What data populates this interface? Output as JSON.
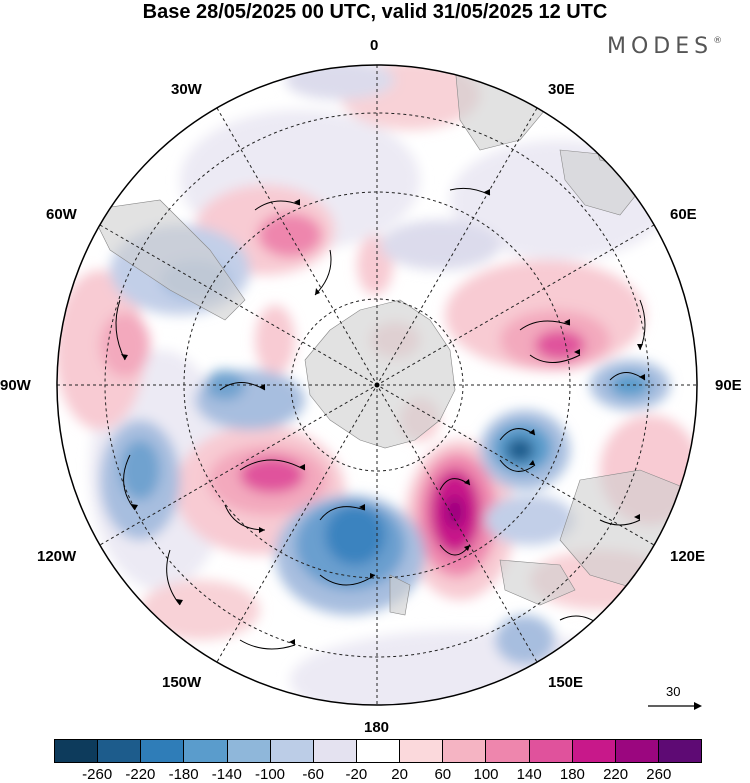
{
  "title": "Base 28/05/2025 00 UTC, valid 31/05/2025 12 UTC",
  "brand": {
    "name": "MODES",
    "mark": "®"
  },
  "longitude_labels": {
    "lon_0": "0",
    "lon_30e": "30E",
    "lon_60e": "60E",
    "lon_90e": "90E",
    "lon_120e": "120E",
    "lon_150e": "150E",
    "lon_180": "180",
    "lon_150w": "150W",
    "lon_120w": "120W",
    "lon_90w": "90W",
    "lon_60w": "60W",
    "lon_30w": "30W"
  },
  "reference_vector": {
    "label": "30"
  },
  "colorbar": {
    "colors": [
      "#0d3b5c",
      "#1d5c8c",
      "#2f7db8",
      "#5a9ccc",
      "#8fb7da",
      "#bccde7",
      "#e4e2f0",
      "#ffffff",
      "#fbd9dc",
      "#f5b4c3",
      "#ee86ad",
      "#e0529c",
      "#c8188a",
      "#9b067f",
      "#5e0a74"
    ],
    "ticks": [
      "-260",
      "-220",
      "-180",
      "-140",
      "-100",
      "-60",
      "-20",
      "20",
      "60",
      "100",
      "140",
      "180",
      "220",
      "260"
    ]
  }
}
